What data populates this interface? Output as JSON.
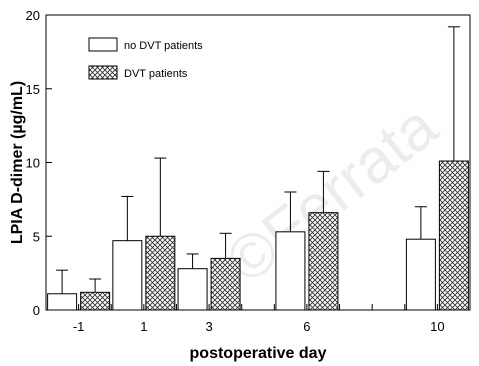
{
  "chart_data": {
    "type": "bar",
    "title": "",
    "xlabel": "postoperative day",
    "ylabel": "LPIA D-dimer (µg/mL)",
    "categories": [
      "-1",
      "1",
      "3",
      "6",
      "10"
    ],
    "x": [
      -1,
      1,
      3,
      6,
      10
    ],
    "xlim": [
      -2,
      11
    ],
    "ylim": [
      0,
      20
    ],
    "y_ticks": [
      0,
      5,
      10,
      15,
      20
    ],
    "y_tick_labels": [
      "0",
      "5",
      "10",
      "15",
      "20"
    ],
    "error_bars": "upper",
    "grid": false,
    "legend_position": "top-left",
    "series": [
      {
        "name": "no DVT patients",
        "fill": "white",
        "values": [
          1.1,
          4.7,
          2.8,
          5.3,
          4.8
        ],
        "errors": [
          1.6,
          3.0,
          1.0,
          2.7,
          2.2
        ]
      },
      {
        "name": "DVT patients",
        "fill": "crosshatch",
        "values": [
          1.2,
          5.0,
          3.5,
          6.6,
          10.1
        ],
        "errors": [
          0.9,
          5.3,
          1.7,
          2.8,
          9.1
        ]
      }
    ]
  },
  "watermark": "©Ferrata"
}
